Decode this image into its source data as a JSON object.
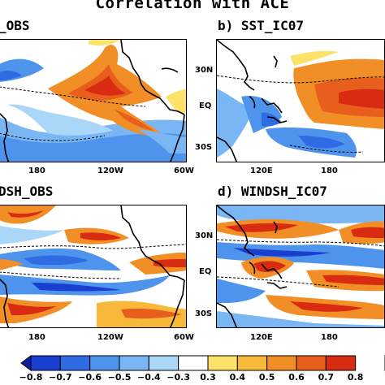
{
  "figure": {
    "title": "Correlation with ACE",
    "colors": {
      "strong_neg": "#0a3ec8",
      "neg": "#3b88e0",
      "weak_neg": "#9fd0f2",
      "white": "#ffffff",
      "weak_pos": "#f7c142",
      "pos": "#ee7a1f",
      "strong_pos": "#dc2a13",
      "coast": "#000000"
    }
  },
  "panels": {
    "a": {
      "label": "_OBS",
      "lat_ticks": [],
      "lon_ticks": [
        "180",
        "120W",
        "60W"
      ]
    },
    "b": {
      "label": "b) SST_IC07",
      "lat_ticks": [
        "30N",
        "EQ",
        "30S"
      ],
      "lon_ticks": [
        "120E",
        "180"
      ]
    },
    "c": {
      "label": "DSH_OBS",
      "lat_ticks": [],
      "lon_ticks": [
        "180",
        "120W",
        "60W"
      ]
    },
    "d": {
      "label": "d) WINDSH_IC07",
      "lat_ticks": [
        "30N",
        "EQ",
        "30S"
      ],
      "lon_ticks": [
        "120E",
        "180"
      ]
    }
  },
  "colorbar": {
    "labels": [
      "−0.8",
      "−0.7",
      "−0.6",
      "−0.5",
      "−0.4",
      "−0.3",
      "0.3",
      "0.4",
      "0.5",
      "0.6",
      "0.7",
      "0.8"
    ],
    "colors": [
      "#0b1e9e",
      "#1a3fd0",
      "#2f6be3",
      "#4f94ec",
      "#7ab6f3",
      "#aad6f7",
      "#ffffff",
      "#fde26a",
      "#f8b93b",
      "#f18f26",
      "#e85e1c",
      "#d82b12",
      "#a80f0b"
    ]
  }
}
